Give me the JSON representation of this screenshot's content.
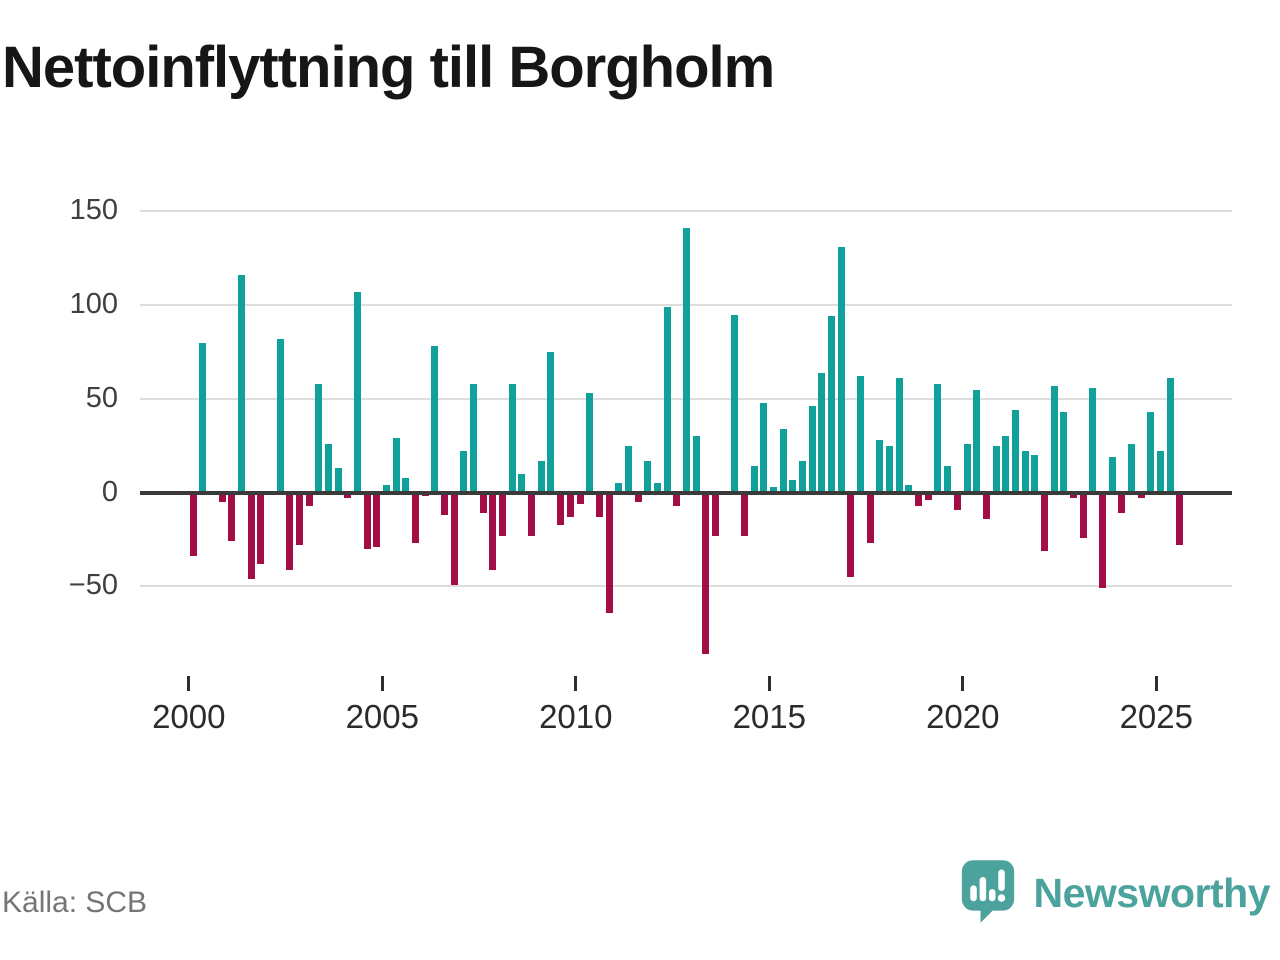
{
  "title": "Nettoinflyttning till Borgholm",
  "source": "Källa: SCB",
  "brand": {
    "name": "Newsworthy",
    "icon": "bar-chart-speech-bubble-icon"
  },
  "colors": {
    "positive": "#12A19A",
    "negative": "#A30D45",
    "zero_line": "#3a3a3a",
    "gridline": "#dddddd",
    "brand_teal": "#4CA29C",
    "title_text": "#161616",
    "axis_text": "#2b2b2b",
    "source_text": "#757575"
  },
  "chart_data": {
    "type": "bar",
    "title": "Nettoinflyttning till Borgholm",
    "xlabel": "",
    "ylabel": "",
    "grid": "horizontal",
    "legend": "none",
    "ylim": [
      -100,
      160
    ],
    "y_ticks": [
      150,
      100,
      50,
      0,
      -50
    ],
    "y_tick_labels": [
      "150",
      "100",
      "50",
      "0",
      "−50"
    ],
    "x_tick_years": [
      2000,
      2005,
      2010,
      2015,
      2020,
      2025
    ],
    "x_tick_labels": [
      "2000",
      "2005",
      "2010",
      "2015",
      "2020",
      "2025"
    ],
    "quarters": [
      "2000 Q1",
      "2000 Q2",
      "2000 Q3",
      "2000 Q4",
      "2001 Q1",
      "2001 Q2",
      "2001 Q3",
      "2001 Q4",
      "2002 Q1",
      "2002 Q2",
      "2002 Q3",
      "2002 Q4",
      "2003 Q1",
      "2003 Q2",
      "2003 Q3",
      "2003 Q4",
      "2004 Q1",
      "2004 Q2",
      "2004 Q3",
      "2004 Q4",
      "2005 Q1",
      "2005 Q2",
      "2005 Q3",
      "2005 Q4",
      "2006 Q1",
      "2006 Q2",
      "2006 Q3",
      "2006 Q4",
      "2007 Q1",
      "2007 Q2",
      "2007 Q3",
      "2007 Q4",
      "2008 Q1",
      "2008 Q2",
      "2008 Q3",
      "2008 Q4",
      "2009 Q1",
      "2009 Q2",
      "2009 Q3",
      "2009 Q4",
      "2010 Q1",
      "2010 Q2",
      "2010 Q3",
      "2010 Q4",
      "2011 Q1",
      "2011 Q2",
      "2011 Q3",
      "2011 Q4",
      "2012 Q1",
      "2012 Q2",
      "2012 Q3",
      "2012 Q4",
      "2013 Q1",
      "2013 Q2",
      "2013 Q3",
      "2013 Q4",
      "2014 Q1",
      "2014 Q2",
      "2014 Q3",
      "2014 Q4",
      "2015 Q1",
      "2015 Q2",
      "2015 Q3",
      "2015 Q4",
      "2016 Q1",
      "2016 Q2",
      "2016 Q3",
      "2016 Q4",
      "2017 Q1",
      "2017 Q2",
      "2017 Q3",
      "2017 Q4",
      "2018 Q1",
      "2018 Q2",
      "2018 Q3",
      "2018 Q4",
      "2019 Q1",
      "2019 Q2",
      "2019 Q3",
      "2019 Q4",
      "2020 Q1",
      "2020 Q2",
      "2020 Q3",
      "2020 Q4",
      "2021 Q1",
      "2021 Q2",
      "2021 Q3",
      "2021 Q4",
      "2022 Q1",
      "2022 Q2",
      "2022 Q3",
      "2022 Q4",
      "2023 Q1",
      "2023 Q2",
      "2023 Q3",
      "2023 Q4",
      "2024 Q1",
      "2024 Q2",
      "2024 Q3",
      "2024 Q4",
      "2025 Q1",
      "2025 Q2",
      "2025 Q3"
    ],
    "values": [
      -34,
      80,
      0,
      -5,
      -26,
      116,
      -46,
      -38,
      0,
      82,
      -41,
      -28,
      -7,
      58,
      26,
      13,
      -3,
      107,
      -30,
      -29,
      4,
      29,
      8,
      -27,
      -2,
      78,
      -12,
      -49,
      22,
      58,
      -11,
      -41,
      -23,
      58,
      10,
      -23,
      17,
      75,
      -17,
      -13,
      -6,
      53,
      -13,
      -64,
      5,
      25,
      -5,
      17,
      5,
      99,
      -7,
      141,
      30,
      -86,
      -23,
      0,
      95,
      -23,
      14,
      48,
      3,
      34,
      7,
      17,
      46,
      64,
      94,
      131,
      -45,
      62,
      -27,
      28,
      25,
      61,
      4,
      -7,
      -4,
      58,
      14,
      -9,
      26,
      55,
      -14,
      25,
      30,
      44,
      22,
      20,
      -31,
      57,
      43,
      -3,
      -24,
      56,
      -51,
      19,
      -11,
      26,
      -3,
      43,
      22,
      61,
      -28
    ]
  }
}
